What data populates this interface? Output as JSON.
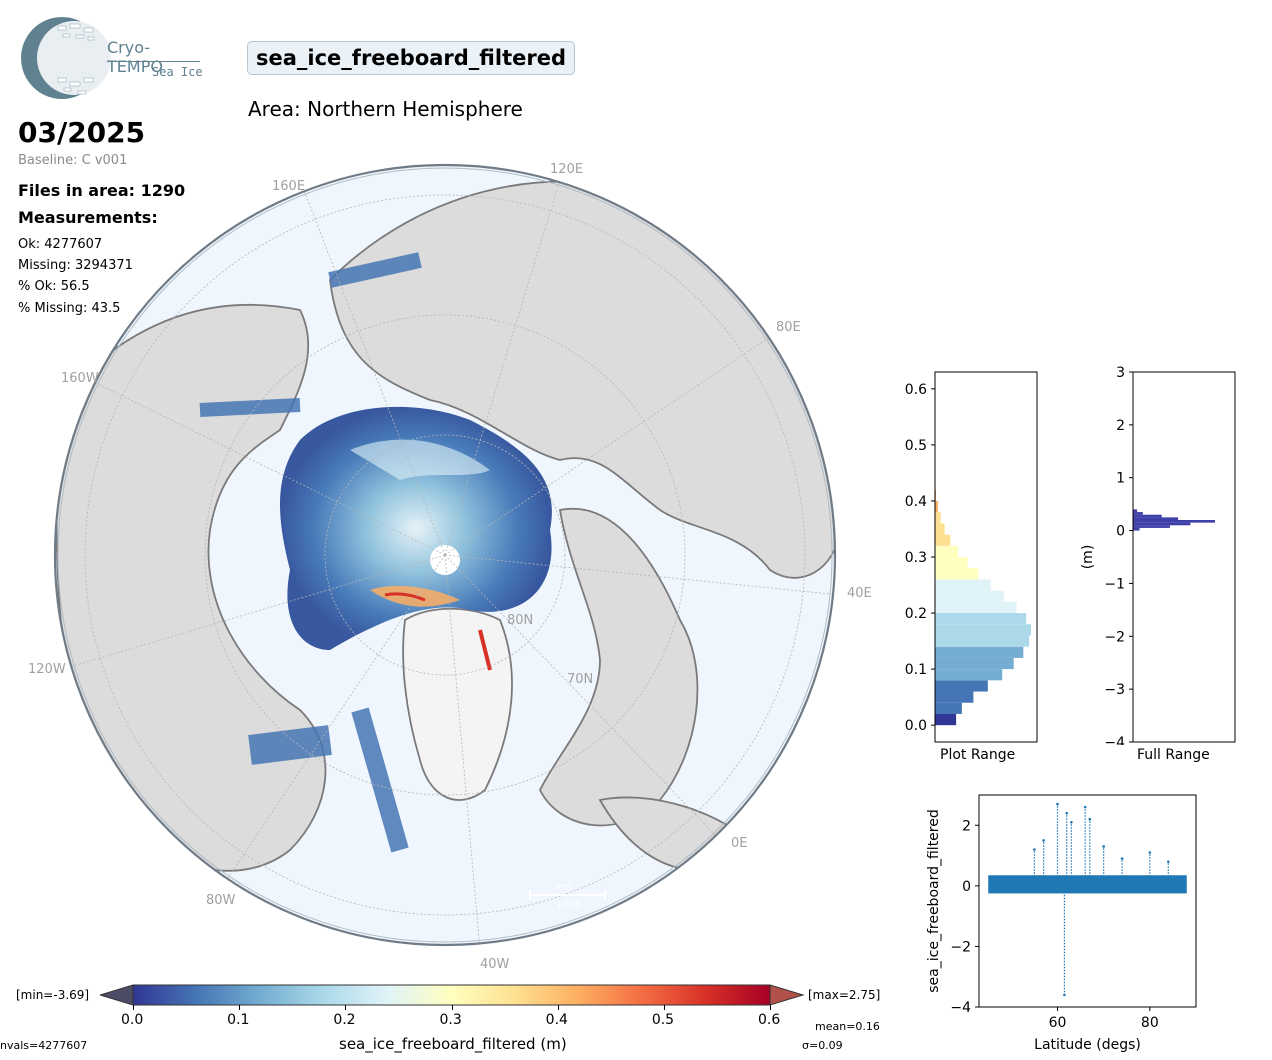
{
  "logo": {
    "name": "Cryo-TEMPO",
    "sub": "Sea Ice"
  },
  "header": {
    "parameter": "sea_ice_freeboard_filtered",
    "area": "Area: Northern Hemisphere",
    "date": "03/2025",
    "baseline": "Baseline: C v001"
  },
  "stats": {
    "files": "Files in area: 1290",
    "measurements_title": "Measurements:",
    "ok": "Ok: 4277607",
    "missing": "Missing: 3294371",
    "pct_ok": "% Ok: 56.5",
    "pct_missing": "% Missing: 43.5"
  },
  "map": {
    "lon_labels": [
      "120E",
      "160E",
      "80E",
      "160W",
      "40E",
      "120W",
      "0E",
      "80W",
      "40W"
    ],
    "lat_labels": [
      "70N",
      "80N"
    ],
    "scale_top": "km",
    "scale_bottom": "1000"
  },
  "colorbar": {
    "min_label": "[min=-3.69]",
    "max_label": "[max=2.75]",
    "ticks": [
      "0.0",
      "0.1",
      "0.2",
      "0.3",
      "0.4",
      "0.5",
      "0.6"
    ],
    "label": "sea_ice_freeboard_filtered (m)",
    "nvals": "nvals=4277607",
    "mean": "mean=0.16",
    "sigma": "σ=0.09",
    "colors": [
      "#313695",
      "#4575b4",
      "#74add1",
      "#abd9e9",
      "#e0f3f8",
      "#ffffbf",
      "#fee090",
      "#fdae61",
      "#f46d43",
      "#d73027",
      "#a50026"
    ]
  },
  "chart_data": [
    {
      "type": "bar",
      "orientation": "horizontal",
      "xlabel": "Plot Range",
      "ylim": [
        -0.03,
        0.63
      ],
      "yticks": [
        "0.0",
        "0.1",
        "0.2",
        "0.3",
        "0.4",
        "0.5",
        "0.6"
      ],
      "bins": [
        0.0,
        0.02,
        0.04,
        0.06,
        0.08,
        0.1,
        0.12,
        0.14,
        0.16,
        0.18,
        0.2,
        0.22,
        0.24,
        0.26,
        0.28,
        0.3,
        0.32,
        0.34,
        0.36,
        0.38,
        0.4
      ],
      "values": [
        0.22,
        0.28,
        0.4,
        0.55,
        0.7,
        0.82,
        0.92,
        0.98,
        1.0,
        0.95,
        0.85,
        0.72,
        0.58,
        0.45,
        0.34,
        0.24,
        0.16,
        0.1,
        0.06,
        0.03,
        0.01
      ]
    },
    {
      "type": "bar",
      "orientation": "horizontal",
      "xlabel": "Full Range",
      "ylabel": "(m)",
      "ylim": [
        -4,
        3
      ],
      "yticks": [
        "−4",
        "−3",
        "−2",
        "−1",
        "0",
        "1",
        "2",
        "3"
      ],
      "bins": [
        0.35,
        0.3,
        0.25,
        0.2,
        0.15,
        0.1,
        0.05,
        0.0
      ],
      "values": [
        0.05,
        0.12,
        0.35,
        0.55,
        1.0,
        0.7,
        0.45,
        0.08
      ],
      "color": "#3f3fa8"
    },
    {
      "type": "scatter",
      "xlabel": "Latitude (degs)",
      "ylabel": "sea_ice_freeboard_filtered",
      "xlim": [
        43,
        90
      ],
      "ylim": [
        -4,
        3
      ],
      "xticks": [
        "60",
        "80"
      ],
      "yticks": [
        "2",
        "0",
        "−2",
        "−4"
      ],
      "color": "#1f77b4",
      "points": [
        [
          60,
          2.7
        ],
        [
          61.5,
          -3.6
        ],
        [
          62,
          2.4
        ],
        [
          63,
          2.1
        ],
        [
          66,
          2.6
        ],
        [
          67,
          2.2
        ],
        [
          55,
          1.2
        ],
        [
          57,
          1.5
        ],
        [
          70,
          1.3
        ],
        [
          74,
          0.9
        ],
        [
          80,
          1.1
        ],
        [
          84,
          0.8
        ]
      ]
    }
  ]
}
